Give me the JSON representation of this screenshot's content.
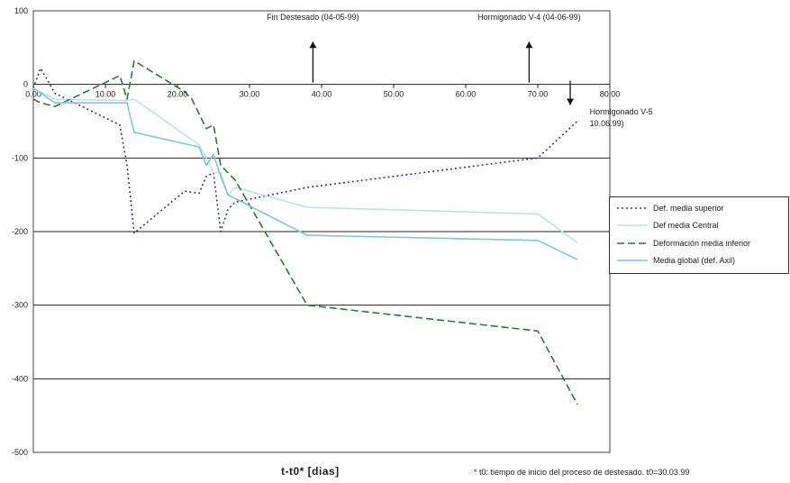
{
  "chart_data": {
    "type": "line",
    "xlabel": "t-t0* [dias]",
    "ylabel": "",
    "xlim": [
      0,
      80
    ],
    "ylim": [
      -500,
      100
    ],
    "x_ticks": [
      "0.00",
      "10.00",
      "20.00",
      "30.00",
      "40.00",
      "50.00",
      "60.00",
      "70.00",
      "80.00"
    ],
    "y_ticks": [
      "100",
      "0",
      "-100",
      "-200",
      "-300",
      "-400",
      "-500"
    ],
    "grid": "horizontal",
    "legend_position": "right",
    "footnote": "* t0: tiempo de inicio del proceso de destesado. t0=30.03.99",
    "annotations": [
      {
        "text": "Fin Destesado (04-05-99)",
        "x": 38.8,
        "direction": "up"
      },
      {
        "text": "Hormigonado V-4 (04-06-99)",
        "x": 68.8,
        "direction": "up"
      },
      {
        "text": "Hormigonado V-5",
        "x": 74.5,
        "direction": "down"
      },
      {
        "text": "10.06.99)",
        "x": 74.5,
        "direction": "none"
      }
    ],
    "series": [
      {
        "name": "Def. media superior",
        "color": "#2e3a8f",
        "dash": "2,3",
        "points": [
          [
            0,
            -5
          ],
          [
            1,
            22
          ],
          [
            3,
            -12
          ],
          [
            12,
            -55
          ],
          [
            13,
            -110
          ],
          [
            14,
            -202
          ],
          [
            21,
            -145
          ],
          [
            23,
            -148
          ],
          [
            24,
            -125
          ],
          [
            25,
            -120
          ],
          [
            26,
            -200
          ],
          [
            27,
            -170
          ],
          [
            28,
            -160
          ],
          [
            38,
            -140
          ],
          [
            70,
            -100
          ],
          [
            75.5,
            -50
          ]
        ]
      },
      {
        "name": "Def media Central",
        "color": "#b9e3ea",
        "dash": "",
        "points": [
          [
            0,
            -5
          ],
          [
            3,
            -20
          ],
          [
            13,
            -22
          ],
          [
            14,
            -20
          ],
          [
            23,
            -82
          ],
          [
            24,
            -100
          ],
          [
            25,
            -120
          ],
          [
            26,
            -120
          ],
          [
            27,
            -150
          ],
          [
            28,
            -140
          ],
          [
            38,
            -167
          ],
          [
            70,
            -176
          ],
          [
            75.5,
            -215
          ]
        ]
      },
      {
        "name": "Deformación media inferior",
        "color": "#2e7a2e",
        "dash": "8,4",
        "points": [
          [
            0,
            -20
          ],
          [
            1,
            -25
          ],
          [
            3,
            -30
          ],
          [
            12,
            12
          ],
          [
            13,
            -20
          ],
          [
            14,
            32
          ],
          [
            21,
            -10
          ],
          [
            22,
            -20
          ],
          [
            24,
            -60
          ],
          [
            25,
            -55
          ],
          [
            26,
            -110
          ],
          [
            28,
            -130
          ],
          [
            38,
            -300
          ],
          [
            70,
            -335
          ],
          [
            75.5,
            -435
          ]
        ]
      },
      {
        "name": "Media global (def. Axil)",
        "color": "#7ccad3",
        "dash": "",
        "points": [
          [
            0,
            -5
          ],
          [
            3,
            -25
          ],
          [
            13,
            -25
          ],
          [
            14,
            -65
          ],
          [
            23,
            -85
          ],
          [
            24,
            -110
          ],
          [
            25,
            -95
          ],
          [
            26,
            -125
          ],
          [
            27,
            -150
          ],
          [
            38,
            -205
          ],
          [
            70,
            -212
          ],
          [
            75.5,
            -238
          ]
        ]
      }
    ]
  }
}
